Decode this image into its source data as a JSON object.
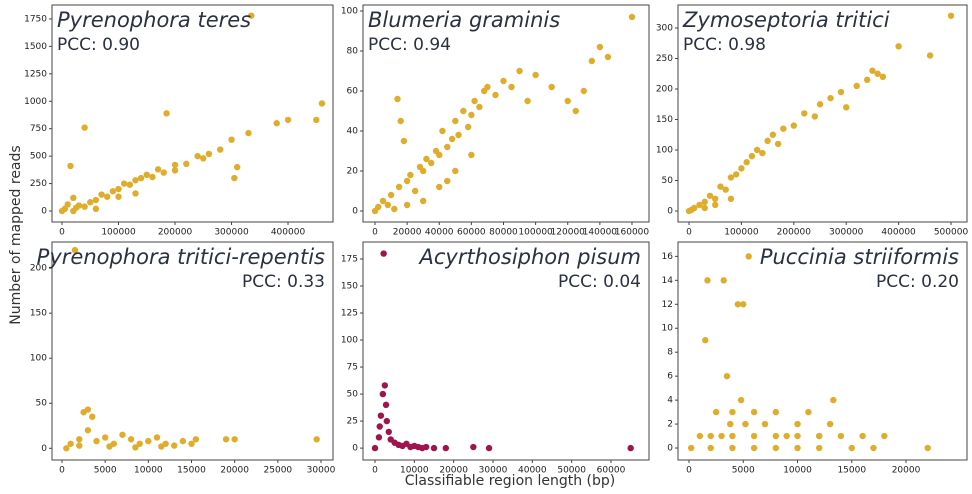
{
  "axis_labels": {
    "x": "Classifiable region length (bp)",
    "y": "Number of mapped reads"
  },
  "chart_data": [
    {
      "type": "scatter",
      "title": "Pyrenophora teres",
      "subtitle": "PCC: 0.90",
      "color": "#e0ac2b",
      "x": [
        0,
        5000,
        10000,
        15000,
        20000,
        25000,
        30000,
        40000,
        50000,
        60000,
        70000,
        80000,
        90000,
        100000,
        110000,
        120000,
        130000,
        140000,
        150000,
        160000,
        170000,
        180000,
        185000,
        200000,
        220000,
        240000,
        260000,
        280000,
        300000,
        305000,
        310000,
        330000,
        335000,
        380000,
        400000,
        450000,
        460000,
        20000,
        40000,
        60000,
        100000,
        130000,
        200000,
        250000
      ],
      "y": [
        0,
        20,
        60,
        410,
        120,
        30,
        50,
        760,
        80,
        100,
        150,
        130,
        180,
        200,
        250,
        240,
        280,
        300,
        330,
        310,
        380,
        350,
        890,
        420,
        430,
        500,
        520,
        560,
        650,
        300,
        400,
        710,
        1780,
        800,
        830,
        830,
        980,
        0,
        40,
        20,
        130,
        160,
        370,
        480
      ],
      "xlim": [
        -17700,
        479600
      ],
      "ylim": [
        -100,
        1877
      ],
      "xticks": [
        0,
        100000,
        200000,
        300000,
        400000
      ],
      "yticks": [
        0,
        250,
        500,
        750,
        1000,
        1250,
        1500,
        1750
      ]
    },
    {
      "type": "scatter",
      "title": "Blumeria graminis",
      "subtitle": "PCC: 0.94",
      "color": "#e0ac2b",
      "x": [
        0,
        2000,
        5000,
        8000,
        10000,
        12000,
        14000,
        15000,
        18000,
        20000,
        22000,
        25000,
        28000,
        30000,
        32000,
        35000,
        38000,
        40000,
        42000,
        45000,
        48000,
        50000,
        52000,
        55000,
        58000,
        60000,
        62000,
        65000,
        68000,
        70000,
        75000,
        80000,
        85000,
        90000,
        95000,
        100000,
        110000,
        120000,
        125000,
        130000,
        135000,
        140000,
        145000,
        160000,
        30000,
        40000,
        50000,
        60000,
        20000,
        16000,
        45000
      ],
      "y": [
        0,
        2,
        5,
        3,
        8,
        1,
        56,
        12,
        35,
        15,
        18,
        10,
        22,
        20,
        26,
        24,
        30,
        28,
        40,
        32,
        36,
        45,
        38,
        50,
        42,
        48,
        55,
        52,
        60,
        62,
        58,
        65,
        62,
        70,
        55,
        68,
        62,
        55,
        50,
        60,
        75,
        82,
        77,
        97,
        5,
        12,
        20,
        28,
        3,
        45,
        15
      ],
      "xlim": [
        -7470,
        170600
      ],
      "ylim": [
        -5.5,
        103
      ],
      "xticks": [
        0,
        20000,
        40000,
        60000,
        80000,
        100000,
        120000,
        140000,
        160000
      ],
      "yticks": [
        0,
        20,
        40,
        60,
        80,
        100
      ]
    },
    {
      "type": "scatter",
      "title": "Zymoseptoria tritici",
      "subtitle": "PCC: 0.98",
      "color": "#e0ac2b",
      "x": [
        0,
        10000,
        20000,
        30000,
        40000,
        50000,
        60000,
        70000,
        80000,
        90000,
        100000,
        110000,
        120000,
        130000,
        140000,
        150000,
        160000,
        170000,
        180000,
        200000,
        220000,
        240000,
        250000,
        270000,
        290000,
        300000,
        320000,
        340000,
        350000,
        360000,
        370000,
        400000,
        460000,
        500000,
        5000,
        30000,
        50000,
        80000
      ],
      "y": [
        0,
        5,
        10,
        15,
        25,
        20,
        40,
        35,
        55,
        60,
        70,
        80,
        90,
        100,
        95,
        115,
        125,
        110,
        135,
        140,
        160,
        155,
        175,
        185,
        195,
        170,
        205,
        215,
        230,
        225,
        220,
        270,
        255,
        320,
        2,
        5,
        10,
        20
      ],
      "xlim": [
        -21000,
        530500
      ],
      "ylim": [
        -18,
        337.7
      ],
      "xticks": [
        0,
        100000,
        200000,
        300000,
        400000,
        500000
      ],
      "yticks": [
        0,
        50,
        100,
        150,
        200,
        250,
        300
      ]
    },
    {
      "type": "scatter",
      "title": "Pyrenophora tritici-repentis",
      "subtitle": "PCC: 0.33",
      "color": "#e0ac2b",
      "x": [
        1500,
        500,
        1000,
        2000,
        2500,
        3000,
        3500,
        3000,
        4000,
        5000,
        6000,
        7000,
        8000,
        9000,
        10000,
        11000,
        12000,
        13000,
        14000,
        15000,
        15500,
        19000,
        20000,
        29500,
        2000,
        5500,
        8500,
        11500
      ],
      "y": [
        220,
        0,
        5,
        10,
        40,
        43,
        35,
        20,
        8,
        12,
        5,
        15,
        10,
        5,
        8,
        12,
        5,
        3,
        8,
        5,
        10,
        10,
        10,
        10,
        3,
        2,
        1,
        2
      ],
      "xlim": [
        -1160,
        31390
      ],
      "ylim": [
        -13,
        229
      ],
      "xticks": [
        0,
        5000,
        10000,
        15000,
        20000,
        25000,
        30000
      ],
      "yticks": [
        0,
        50,
        100,
        150,
        200
      ]
    },
    {
      "type": "scatter",
      "title": "Acyrthosiphon pisum",
      "subtitle": "PCC: 0.04",
      "color": "#a0144e",
      "x": [
        0,
        1000,
        1500,
        2000,
        2200,
        2500,
        3000,
        3500,
        4000,
        5000,
        6000,
        7000,
        8000,
        9000,
        10000,
        11000,
        12000,
        13000,
        15000,
        18000,
        25000,
        29000,
        65000,
        1200,
        2800
      ],
      "y": [
        0,
        10,
        30,
        50,
        180,
        58,
        25,
        15,
        8,
        5,
        3,
        2,
        4,
        1,
        2,
        1,
        0,
        1,
        0,
        0,
        1,
        0,
        0,
        20,
        40
      ],
      "xlim": [
        -3050,
        69660
      ],
      "ylim": [
        -11,
        190.7
      ],
      "xticks": [
        0,
        10000,
        20000,
        30000,
        40000,
        50000,
        60000
      ],
      "yticks": [
        0,
        25,
        50,
        75,
        100,
        125,
        150,
        175
      ]
    },
    {
      "type": "scatter",
      "title": "Puccinia striiformis",
      "subtitle": "PCC: 0.20",
      "color": "#e0ac2b",
      "x": [
        200,
        1000,
        1500,
        1700,
        2500,
        3000,
        3200,
        3500,
        3800,
        4000,
        4500,
        4800,
        5000,
        5200,
        5500,
        6000,
        7000,
        8000,
        9000,
        10000,
        11000,
        12000,
        13000,
        13300,
        14000,
        15000,
        16000,
        17000,
        18000,
        22000,
        2000,
        4000,
        6000,
        8000,
        10000,
        12000,
        2000,
        4000,
        6000,
        8000,
        10000,
        12000
      ],
      "y": [
        0,
        1,
        9,
        14,
        3,
        1,
        14,
        6,
        2,
        3,
        12,
        4,
        12,
        2,
        16,
        3,
        2,
        3,
        1,
        2,
        3,
        1,
        2,
        4,
        1,
        0,
        1,
        0,
        1,
        0,
        0,
        0,
        0,
        0,
        0,
        0,
        1,
        1,
        1,
        1,
        1,
        1
      ],
      "xlim": [
        -1014,
        25620
      ],
      "ylim": [
        -1,
        17.2
      ],
      "xticks": [
        0,
        5000,
        10000,
        15000,
        20000
      ],
      "yticks": [
        0,
        2,
        4,
        6,
        8,
        10,
        12,
        14,
        16
      ]
    }
  ]
}
